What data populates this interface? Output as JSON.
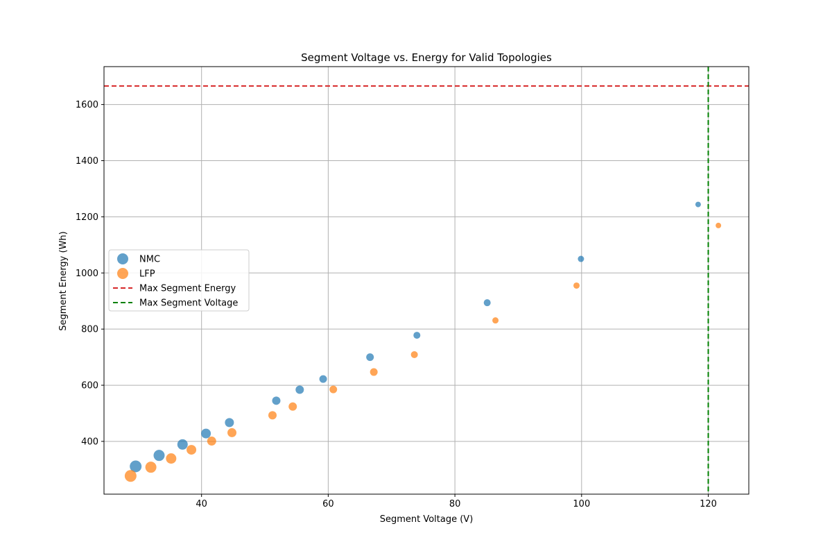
{
  "chart_data": {
    "type": "scatter",
    "title": "Segment Voltage vs. Energy for Valid Topologies",
    "xlabel": "Segment Voltage (V)",
    "ylabel": "Segment Energy (Wh)",
    "xlim": [
      24.6,
      126.4
    ],
    "ylim": [
      212,
      1735
    ],
    "xticks": [
      40,
      60,
      80,
      100,
      120
    ],
    "yticks": [
      400,
      600,
      800,
      1000,
      1200,
      1400,
      1600
    ],
    "grid": true,
    "legend_position": "center-left",
    "series": [
      {
        "name": "NMC",
        "color": "#1f77b4",
        "points": [
          {
            "x": 29.6,
            "y": 311,
            "size": 16
          },
          {
            "x": 33.3,
            "y": 350,
            "size": 15
          },
          {
            "x": 37.0,
            "y": 389,
            "size": 14
          },
          {
            "x": 40.7,
            "y": 428,
            "size": 13
          },
          {
            "x": 44.4,
            "y": 467,
            "size": 12
          },
          {
            "x": 51.8,
            "y": 545,
            "size": 11
          },
          {
            "x": 55.5,
            "y": 584,
            "size": 11
          },
          {
            "x": 59.2,
            "y": 622,
            "size": 10
          },
          {
            "x": 66.6,
            "y": 700,
            "size": 10
          },
          {
            "x": 74.0,
            "y": 778,
            "size": 9
          },
          {
            "x": 85.1,
            "y": 894,
            "size": 9
          },
          {
            "x": 99.9,
            "y": 1050,
            "size": 8
          },
          {
            "x": 118.4,
            "y": 1244,
            "size": 7
          }
        ]
      },
      {
        "name": "LFP",
        "color": "#ff7f0e",
        "points": [
          {
            "x": 28.8,
            "y": 277,
            "size": 16
          },
          {
            "x": 32.0,
            "y": 308,
            "size": 15
          },
          {
            "x": 35.2,
            "y": 339,
            "size": 14
          },
          {
            "x": 38.4,
            "y": 370,
            "size": 13
          },
          {
            "x": 41.6,
            "y": 401,
            "size": 12
          },
          {
            "x": 44.8,
            "y": 431,
            "size": 12
          },
          {
            "x": 51.2,
            "y": 493,
            "size": 11
          },
          {
            "x": 54.4,
            "y": 524,
            "size": 11
          },
          {
            "x": 60.8,
            "y": 585,
            "size": 10
          },
          {
            "x": 67.2,
            "y": 647,
            "size": 10
          },
          {
            "x": 73.6,
            "y": 709,
            "size": 9
          },
          {
            "x": 86.4,
            "y": 831,
            "size": 8
          },
          {
            "x": 99.2,
            "y": 955,
            "size": 8
          },
          {
            "x": 121.6,
            "y": 1169,
            "size": 7
          }
        ]
      }
    ],
    "reference_lines": [
      {
        "name": "Max Segment Energy",
        "orientation": "horizontal",
        "value": 1666,
        "color": "#d62728"
      },
      {
        "name": "Max Segment Voltage",
        "orientation": "vertical",
        "value": 120,
        "color": "#008000"
      }
    ]
  }
}
